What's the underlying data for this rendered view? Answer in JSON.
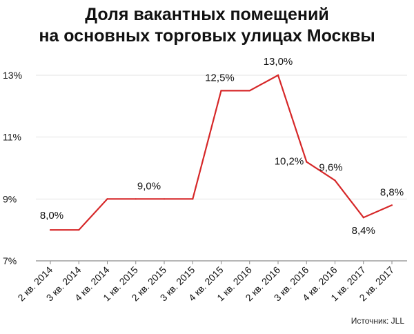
{
  "title_lines": [
    "Доля вакантных помещений",
    "на основных торговых улицах Москвы"
  ],
  "source": "Источник: JLL",
  "colors": {
    "line": "#d62728",
    "grid": "#e3e3e3",
    "axis": "#8a8a8a",
    "text": "#111111"
  },
  "chart_data": {
    "type": "line",
    "categories": [
      "2 кв. 2014",
      "3 кв. 2014",
      "4 кв. 2014",
      "1 кв. 2015",
      "2 кв. 2015",
      "3 кв. 2015",
      "4 кв. 2015",
      "1 кв. 2016",
      "2 кв. 2016",
      "3 кв. 2016",
      "4 кв. 2016",
      "1 кв. 2017",
      "2 кв. 2017"
    ],
    "values": [
      8.0,
      8.0,
      9.0,
      9.0,
      9.0,
      9.0,
      12.5,
      12.5,
      13.0,
      10.2,
      9.6,
      8.4,
      8.8
    ],
    "ylim": [
      7,
      13
    ],
    "yticks": [
      7,
      9,
      11,
      13
    ],
    "ytick_labels": [
      "7%",
      "9%",
      "11%",
      "13%"
    ],
    "grid": true,
    "data_labels": [
      {
        "index": 0,
        "text": "8,0%",
        "pos": "above"
      },
      {
        "index": 4,
        "text": "9,0%",
        "pos": "above"
      },
      {
        "index": 6,
        "text": "12,5%",
        "pos": "above"
      },
      {
        "index": 8,
        "text": "13,0%",
        "pos": "above"
      },
      {
        "index": 9,
        "text": "10,2%",
        "pos": "left"
      },
      {
        "index": 10,
        "text": "9,6%",
        "pos": "above"
      },
      {
        "index": 11,
        "text": "8,4%",
        "pos": "below"
      },
      {
        "index": 12,
        "text": "8,8%",
        "pos": "above"
      }
    ]
  }
}
